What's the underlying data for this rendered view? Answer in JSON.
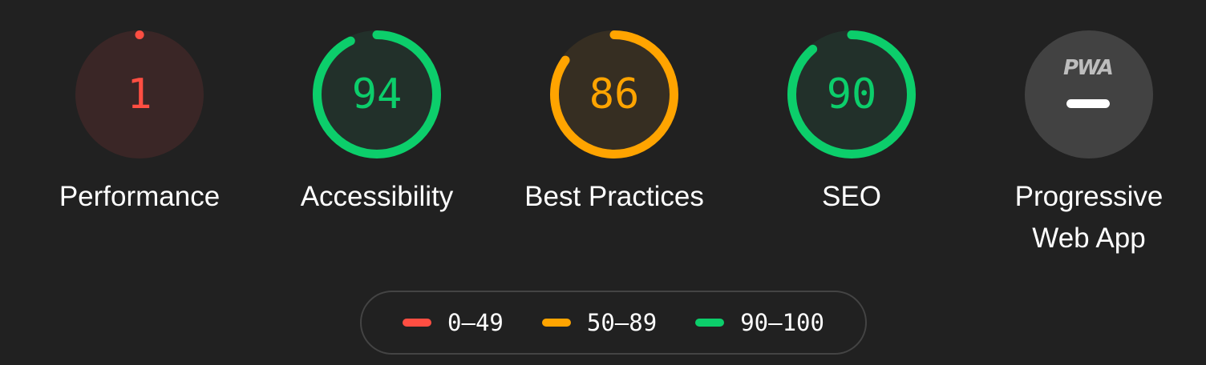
{
  "gauges": [
    {
      "label": "Performance",
      "score": 1,
      "color": "#ff4e42",
      "fill": "#3a2626"
    },
    {
      "label": "Accessibility",
      "score": 94,
      "color": "#0cce6b",
      "fill": "#22302a"
    },
    {
      "label": "Best Practices",
      "score": 86,
      "color": "#ffa400",
      "fill": "#362e22"
    },
    {
      "label": "SEO",
      "score": 90,
      "color": "#0cce6b",
      "fill": "#22302a"
    }
  ],
  "pwa": {
    "label": "Progressive Web App",
    "logo": "PWA",
    "icon": "dash-icon",
    "fill": "#424242"
  },
  "legend": [
    {
      "range": "0–49",
      "color": "#ff4e42"
    },
    {
      "range": "50–89",
      "color": "#ffa400"
    },
    {
      "range": "90–100",
      "color": "#0cce6b"
    }
  ]
}
